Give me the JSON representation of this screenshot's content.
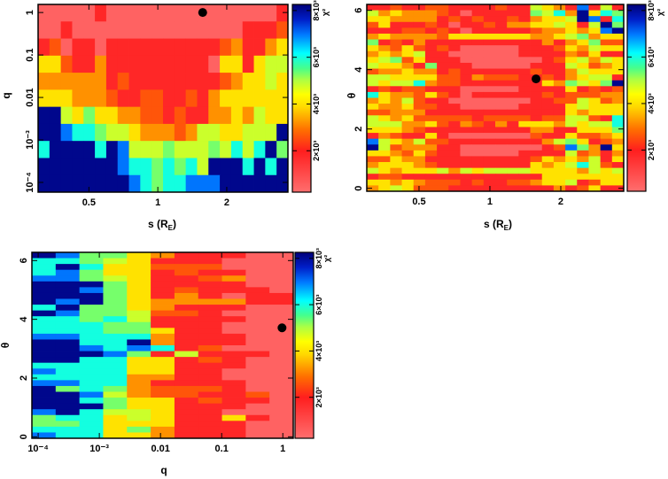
{
  "chart_data": [
    {
      "type": "heatmap",
      "xlabel": {
        "main": "s (R",
        "sub": "E",
        "close": ")"
      },
      "ylabel": "q",
      "xscale": "log",
      "yscale": "log",
      "xlim": [
        0.3,
        3.7
      ],
      "ylim": [
        5.9e-05,
        1.55
      ],
      "xticks": [
        {
          "v": 0.5,
          "label": "0.5"
        },
        {
          "v": 1,
          "label": "1"
        },
        {
          "v": 2,
          "label": "2"
        }
      ],
      "yticks": [
        {
          "v": 1,
          "label": "1"
        },
        {
          "v": 0.1,
          "label": "0.1"
        },
        {
          "v": 0.01,
          "label": "0.01"
        },
        {
          "v": 0.001,
          "label": "10⁻³"
        },
        {
          "v": 0.0001,
          "label": "10⁻⁴"
        }
      ],
      "colorbar": {
        "label": "χ²",
        "range": [
          230,
          8260
        ],
        "ticks": [
          {
            "v": 2000,
            "label": "2×10³"
          },
          {
            "v": 4000,
            "label": "4×10³"
          },
          {
            "v": 6000,
            "label": "6×10³"
          },
          {
            "v": 8000,
            "label": "8×10³"
          }
        ]
      },
      "code_values": [
        500,
        1800,
        2600,
        3200,
        4000,
        4800,
        5300,
        6000,
        7000,
        8100
      ],
      "rows_top_to_bottom": [
        "0000010000000000000001",
        "0010000000000000001112",
        "1201101111111111231134",
        "4421131111111110441455",
        "3333331211111111234454",
        "4443332112211213444444",
        "9954644332212113343544",
        "9987765543332355445559",
        "7999979855565556575796",
        "9999999877676759997979",
        "9999999987677888999999"
      ],
      "best_fit": {
        "x": 1.57,
        "y": 1.0
      }
    },
    {
      "type": "heatmap",
      "xlabel": {
        "main": "s (R",
        "sub": "E",
        "close": ")"
      },
      "ylabel": "θ",
      "xscale": "log",
      "yscale": "linear",
      "xlim": [
        0.3,
        3.7
      ],
      "ylim": [
        -0.1,
        6.2
      ],
      "xticks": [
        {
          "v": 0.5,
          "label": "0.5"
        },
        {
          "v": 1,
          "label": "1"
        },
        {
          "v": 2,
          "label": "2"
        }
      ],
      "yticks": [
        {
          "v": 0,
          "label": "0"
        },
        {
          "v": 2,
          "label": "2"
        },
        {
          "v": 4,
          "label": "4"
        },
        {
          "v": 6,
          "label": "6"
        }
      ],
      "colorbar": {
        "label": "χ²",
        "range": [
          230,
          8260
        ],
        "ticks": [
          {
            "v": 2000,
            "label": "2×10³"
          },
          {
            "v": 4000,
            "label": "4×10³"
          },
          {
            "v": 6000,
            "label": "6×10³"
          },
          {
            "v": 8000,
            "label": "8×10³"
          }
        ]
      },
      "code_values": [
        500,
        1800,
        2600,
        3200,
        4000,
        4800,
        5300,
        6000,
        7000,
        8100
      ],
      "rows_top_to_bottom": [
        "1121122111121154318151",
        "5343332101111165739476",
        "4433331212112134459817",
        "2411121011213344541596",
        "1112212101111123343489",
        "3433332444444433456344",
        "6121311111111113134622",
        "4324212100000111243544",
        "3434511000000111132411",
        "4562411100000001245354",
        "5443161110000011154234",
        "2334331211111121135444",
        "5544442213222112134551",
        "5455732211111114365469",
        "1212211100000111141212",
        "7433242101111112122233",
        "3435211000000011225423",
        "4334221100000111145444",
        "2233311111111111143444",
        "5434222221222212255217",
        "5553342132131444354557",
        "4443211111111133114446",
        "1321141000000021142234",
        "8543522111111113564123",
        "9523331100000001286394",
        "4432421100000111152313",
        "2243311111111124343514",
        "3444321111111143457521",
        "5434445354555544443545",
        "1221111111111114444444",
        "4434322212112234451244",
        "3454222111111111312411"
      ],
      "best_fit": {
        "x": 1.57,
        "y": 3.69
      }
    },
    {
      "type": "heatmap",
      "xlabel": {
        "main": "q",
        "sub": "",
        "close": ""
      },
      "ylabel": "θ",
      "xscale": "log",
      "yscale": "linear",
      "xlim": [
        7.9e-05,
        1.48
      ],
      "ylim": [
        -0.05,
        6.28
      ],
      "xticks": [
        {
          "v": 0.0001,
          "label": "10⁻⁴"
        },
        {
          "v": 0.001,
          "label": "10⁻³"
        },
        {
          "v": 0.01,
          "label": "0.01"
        },
        {
          "v": 0.1,
          "label": "0.1"
        },
        {
          "v": 1,
          "label": "1"
        }
      ],
      "yticks": [
        {
          "v": 0,
          "label": "0"
        },
        {
          "v": 2,
          "label": "2"
        },
        {
          "v": 4,
          "label": "4"
        },
        {
          "v": 6,
          "label": "6"
        }
      ],
      "colorbar": {
        "label": "χ²",
        "range": [
          230,
          8260
        ],
        "ticks": [
          {
            "v": 2000,
            "label": "2×10³"
          },
          {
            "v": 4000,
            "label": "4×10³"
          },
          {
            "v": 6000,
            "label": "6×10³"
          },
          {
            "v": 8000,
            "label": "8×10³"
          }
        ]
      },
      "code_values": [
        500,
        1800,
        2600,
        3200,
        4000,
        4800,
        5300,
        6000,
        7000,
        8100
      ],
      "rows_top_to_bottom": [
        "98664311100",
        "77654111000",
        "79744222000",
        "78644121100",
        "88654112300",
        "99964111100",
        "99864121110",
        "99964131011",
        "98964333311",
        "79664311100",
        "98665221000",
        "77675111100",
        "77766111000",
        "77766411000",
        "88777311100",
        "99779311100",
        "99878712000",
        "99986151110",
        "99774412100",
        "77774411100",
        "87774411000",
        "77773311000",
        "88773111100",
        "96763222100",
        "99853221120",
        "99764412110",
        "99964411100",
        "89755411000",
        "67745411410",
        "66744411100",
        "77746311100",
        "87744311100"
      ],
      "best_fit": {
        "x": 0.97,
        "y": 3.71
      }
    }
  ]
}
